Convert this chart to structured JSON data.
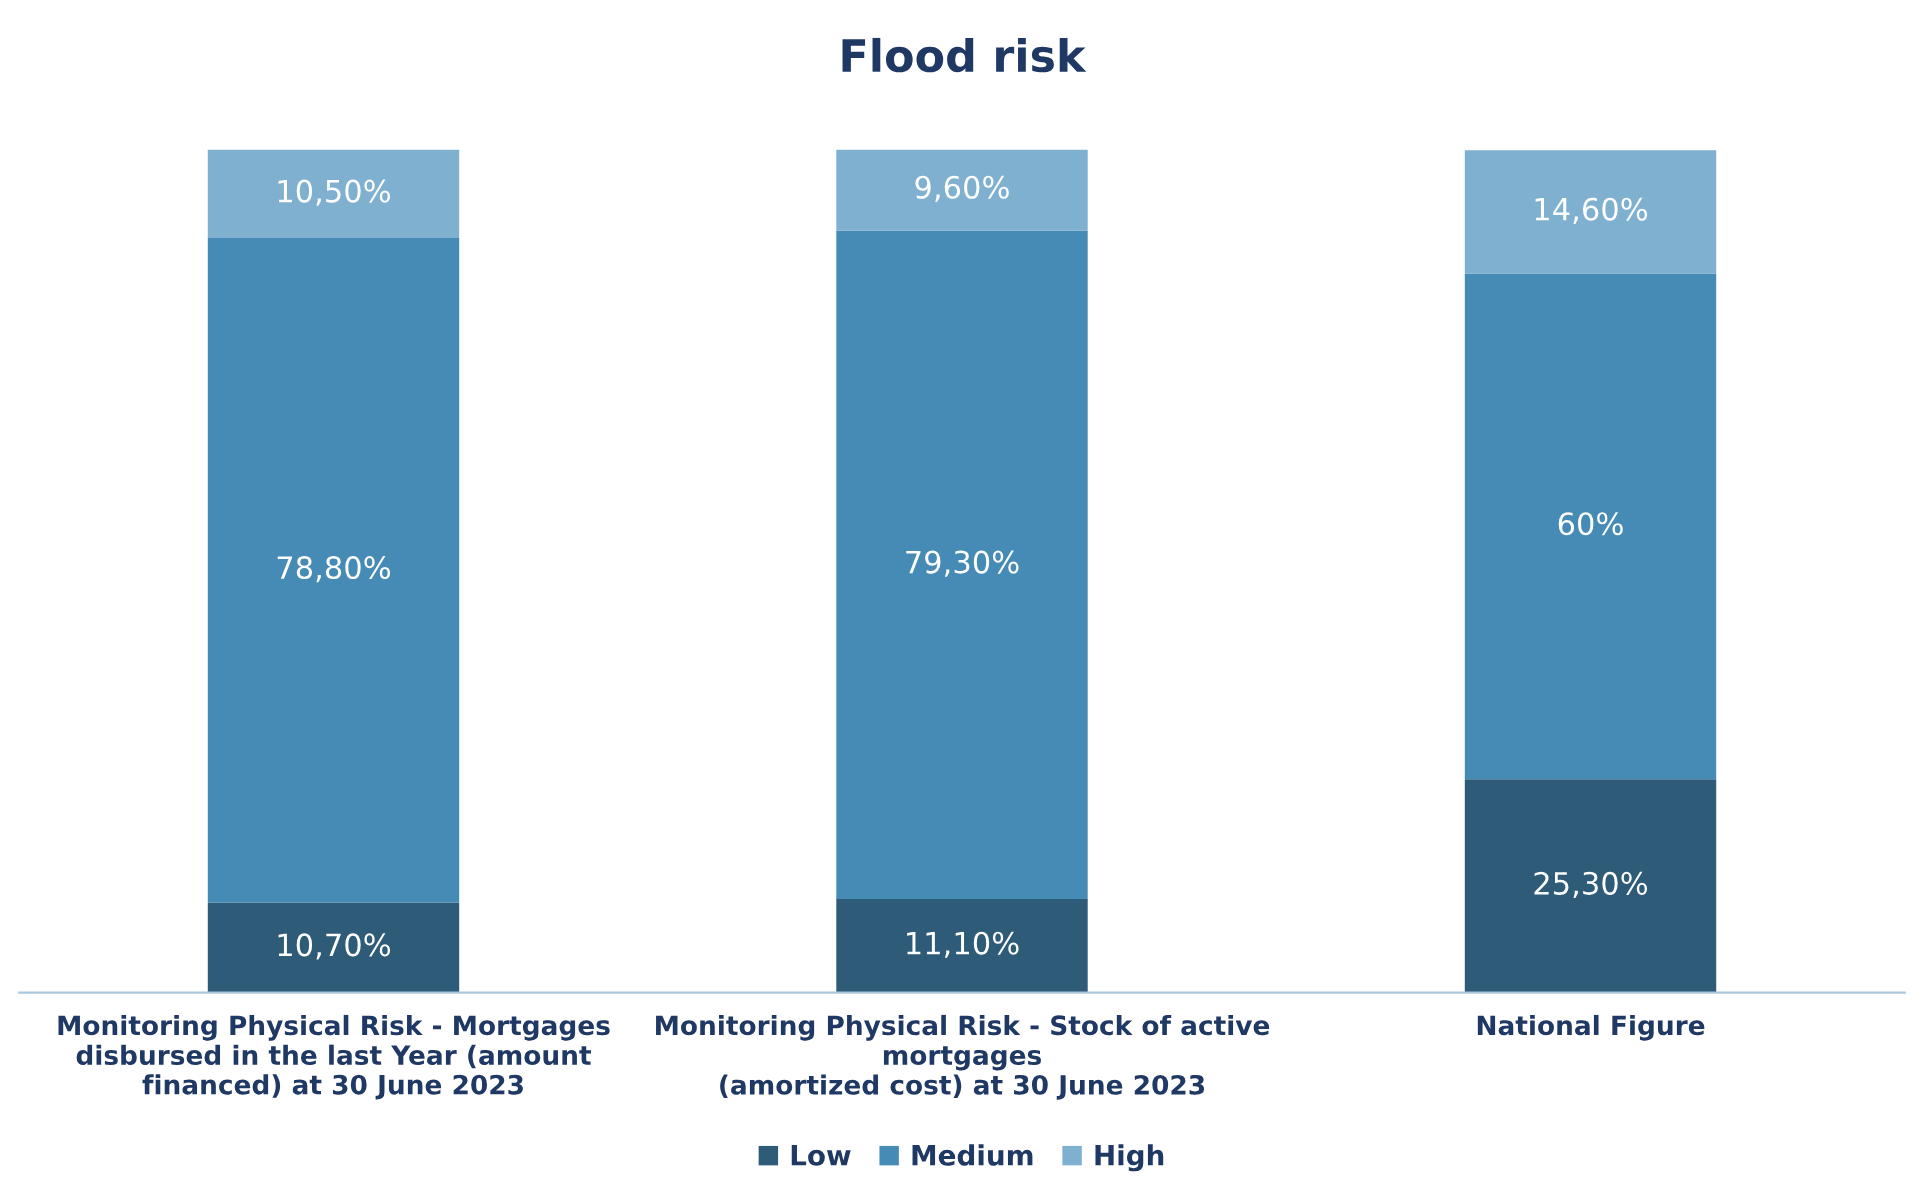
{
  "chart_data": {
    "type": "bar",
    "stacked": true,
    "title": "Flood risk",
    "categories": [
      "Monitoring Physical Risk - Mortgages\ndisbursed in the last Year (amount\nfinanced) at 30 June 2023",
      "Monitoring Physical Risk - Stock of active\nmortgages\n(amortized cost) at 30 June 2023",
      "National Figure"
    ],
    "series": [
      {
        "name": "Low",
        "color": "#2e5b78",
        "values": [
          10.7,
          11.1,
          25.3
        ],
        "value_labels": [
          "10,70%",
          "11,10%",
          "25,30%"
        ]
      },
      {
        "name": "Medium",
        "color": "#468bb5",
        "values": [
          78.8,
          79.3,
          60
        ],
        "value_labels": [
          "78,80%",
          "79,30%",
          "60%"
        ]
      },
      {
        "name": "High",
        "color": "#80b0d0",
        "values": [
          10.5,
          9.6,
          14.6
        ],
        "value_labels": [
          "10,50%",
          "9,60%",
          "14,60%"
        ]
      }
    ],
    "legend": "bottom",
    "grid": false
  }
}
